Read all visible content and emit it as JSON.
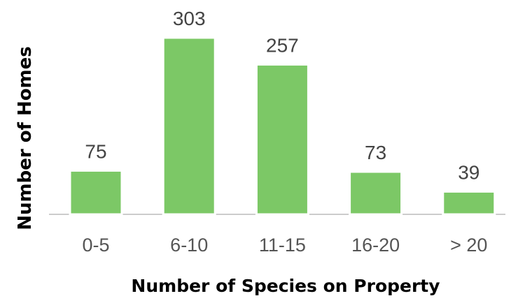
{
  "chart_data": {
    "type": "bar",
    "categories": [
      "0-5",
      "6-10",
      "11-15",
      "16-20",
      "> 20"
    ],
    "values": [
      75,
      303,
      257,
      73,
      39
    ],
    "title": "",
    "xlabel": "Number of Species on Property",
    "ylabel": "Number of Homes",
    "ylim": [
      0,
      330
    ],
    "grid": false,
    "legend": "none",
    "data_labels": true,
    "bar_color": "#7cc866",
    "axis_color": "#cccccc"
  }
}
